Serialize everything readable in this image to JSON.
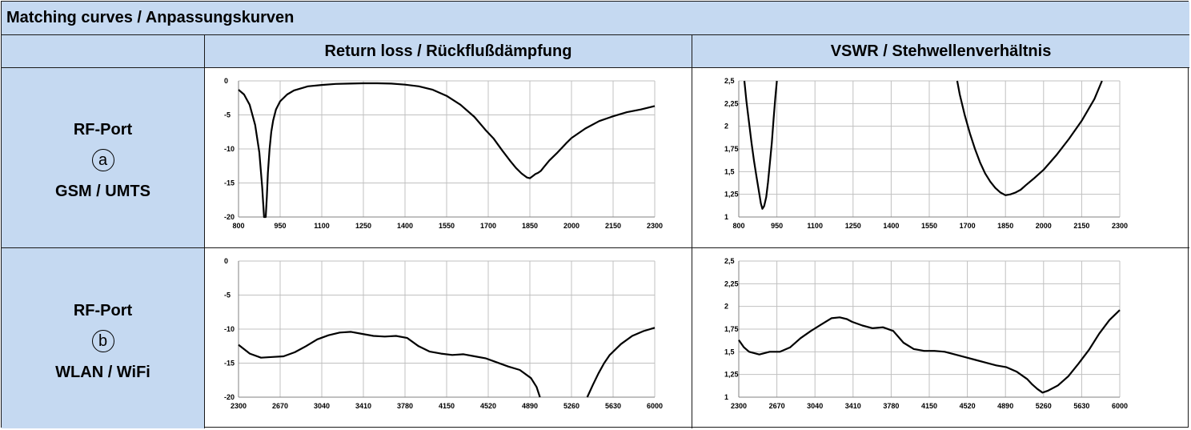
{
  "header": {
    "title": "Matching curves / Anpassungskurven"
  },
  "columns": {
    "return_loss": "Return loss / Rückflußdämpfung",
    "vswr": "VSWR / Stehwellenverhältnis"
  },
  "ports": [
    {
      "label": "RF-Port",
      "marker": "a",
      "band": "GSM / UMTS"
    },
    {
      "label": "RF-Port",
      "marker": "b",
      "band": "WLAN / WiFi"
    }
  ],
  "colors": {
    "header_bg": "#c5d9f1",
    "line": "#000000",
    "grid": "#c0c0c0"
  },
  "chart_data": [
    {
      "id": "rl_a",
      "type": "line",
      "xlim": [
        800,
        2300
      ],
      "ylim": [
        -20,
        0
      ],
      "xticks": [
        "800",
        "950",
        "1100",
        "1250",
        "1400",
        "1550",
        "1700",
        "1850",
        "2000",
        "2150",
        "2300"
      ],
      "yticks": [
        "0",
        "-5",
        "-10",
        "-15",
        "-20"
      ],
      "grid": "vertical and horizontal",
      "series": [
        {
          "x": [
            800,
            820,
            840,
            860,
            875,
            885,
            892,
            898,
            902,
            906,
            912,
            918,
            925,
            935,
            950,
            975,
            1000,
            1050,
            1100,
            1150,
            1200,
            1250,
            1300,
            1350,
            1400,
            1450,
            1500,
            1550,
            1600,
            1650,
            1690,
            1720,
            1750,
            1780,
            1800,
            1820,
            1840,
            1850,
            1860,
            1870,
            1880,
            1890,
            1900,
            1920,
            1950,
            1980,
            2000,
            2050,
            2100,
            2150,
            2200,
            2250,
            2300
          ],
          "y": [
            -1.3,
            -2.0,
            -3.5,
            -6.5,
            -10.5,
            -15.5,
            -20,
            -20,
            -17,
            -13.5,
            -10,
            -7.5,
            -5.8,
            -4.2,
            -3.0,
            -2.0,
            -1.4,
            -0.8,
            -0.6,
            -0.45,
            -0.4,
            -0.35,
            -0.35,
            -0.4,
            -0.55,
            -0.8,
            -1.3,
            -2.2,
            -3.5,
            -5.3,
            -7.2,
            -8.5,
            -10.2,
            -11.8,
            -12.8,
            -13.6,
            -14.2,
            -14.3,
            -14.0,
            -13.7,
            -13.5,
            -13.2,
            -12.7,
            -11.7,
            -10.5,
            -9.2,
            -8.4,
            -7.0,
            -5.9,
            -5.2,
            -4.6,
            -4.2,
            -3.7
          ]
        }
      ]
    },
    {
      "id": "vswr_a",
      "type": "line",
      "xlim": [
        800,
        2300
      ],
      "ylim": [
        1,
        2.5
      ],
      "xticks": [
        "800",
        "950",
        "1100",
        "1250",
        "1400",
        "1550",
        "1700",
        "1850",
        "2000",
        "2150",
        "2300"
      ],
      "yticks": [
        "2,5",
        "2,25",
        "2",
        "1,75",
        "1,5",
        "1,25",
        "1"
      ],
      "grid": "vertical and horizontal",
      "series": [
        {
          "segments": [
            {
              "x": [
                822,
                830,
                840,
                850,
                860,
                870,
                880,
                887,
                893,
                900,
                908,
                915,
                922,
                930,
                937,
                944,
                950
              ],
              "y": [
                2.5,
                2.28,
                2.05,
                1.82,
                1.62,
                1.44,
                1.27,
                1.15,
                1.09,
                1.12,
                1.22,
                1.38,
                1.58,
                1.82,
                2.08,
                2.32,
                2.5
              ]
            },
            {
              "x": [
                1660,
                1670,
                1690,
                1710,
                1730,
                1750,
                1770,
                1790,
                1810,
                1830,
                1850,
                1870,
                1890,
                1910,
                1930,
                1960,
                2000,
                2050,
                2100,
                2150,
                2200,
                2230
              ],
              "y": [
                2.5,
                2.35,
                2.12,
                1.92,
                1.75,
                1.6,
                1.48,
                1.39,
                1.32,
                1.27,
                1.24,
                1.25,
                1.27,
                1.3,
                1.35,
                1.42,
                1.52,
                1.68,
                1.86,
                2.06,
                2.3,
                2.5
              ]
            }
          ]
        }
      ]
    },
    {
      "id": "rl_b",
      "type": "line",
      "xlim": [
        2300,
        6000
      ],
      "ylim": [
        -20,
        0
      ],
      "xticks": [
        "2300",
        "2670",
        "3040",
        "3410",
        "3780",
        "4150",
        "4520",
        "4890",
        "5260",
        "5630",
        "6000"
      ],
      "yticks": [
        "0",
        "-5",
        "-10",
        "-15",
        "-20"
      ],
      "grid": "vertical and horizontal",
      "series": [
        {
          "segments": [
            {
              "x": [
                2300,
                2400,
                2500,
                2600,
                2700,
                2800,
                2900,
                3000,
                3100,
                3200,
                3300,
                3400,
                3500,
                3600,
                3700,
                3800,
                3900,
                4000,
                4100,
                4200,
                4300,
                4400,
                4500,
                4600,
                4700,
                4800,
                4900,
                4950,
                4980
              ],
              "y": [
                -12.3,
                -13.6,
                -14.2,
                -14.1,
                -14.0,
                -13.4,
                -12.5,
                -11.5,
                -10.9,
                -10.5,
                -10.4,
                -10.7,
                -11.0,
                -11.1,
                -11.0,
                -11.3,
                -12.5,
                -13.3,
                -13.6,
                -13.8,
                -13.7,
                -14.0,
                -14.3,
                -14.9,
                -15.5,
                -16.0,
                -17.2,
                -18.5,
                -20
              ]
            },
            {
              "x": [
                5400,
                5450,
                5500,
                5550,
                5600,
                5700,
                5800,
                5900,
                6000
              ],
              "y": [
                -20,
                -18.2,
                -16.5,
                -15.0,
                -13.8,
                -12.2,
                -11.0,
                -10.3,
                -9.8
              ]
            }
          ]
        }
      ]
    },
    {
      "id": "vswr_b",
      "type": "line",
      "xlim": [
        2300,
        6000
      ],
      "ylim": [
        1,
        2.5
      ],
      "xticks": [
        "2300",
        "2670",
        "3040",
        "3410",
        "3780",
        "4150",
        "4520",
        "4890",
        "5260",
        "5630",
        "6000"
      ],
      "yticks": [
        "2,5",
        "2,25",
        "2",
        "1,75",
        "1,5",
        "1,25",
        "1"
      ],
      "grid": "vertical and horizontal",
      "series": [
        {
          "x": [
            2300,
            2350,
            2400,
            2500,
            2600,
            2700,
            2800,
            2900,
            3000,
            3100,
            3200,
            3280,
            3350,
            3400,
            3500,
            3600,
            3700,
            3800,
            3900,
            4000,
            4100,
            4200,
            4300,
            4400,
            4500,
            4600,
            4700,
            4800,
            4900,
            5000,
            5100,
            5150,
            5200,
            5250,
            5300,
            5400,
            5500,
            5600,
            5700,
            5800,
            5900,
            6000
          ],
          "y": [
            1.63,
            1.55,
            1.5,
            1.47,
            1.5,
            1.5,
            1.55,
            1.65,
            1.73,
            1.8,
            1.87,
            1.88,
            1.86,
            1.83,
            1.79,
            1.76,
            1.77,
            1.73,
            1.6,
            1.53,
            1.51,
            1.51,
            1.5,
            1.47,
            1.44,
            1.41,
            1.38,
            1.35,
            1.33,
            1.28,
            1.2,
            1.14,
            1.09,
            1.05,
            1.07,
            1.13,
            1.23,
            1.37,
            1.52,
            1.7,
            1.85,
            1.96
          ]
        }
      ]
    }
  ]
}
